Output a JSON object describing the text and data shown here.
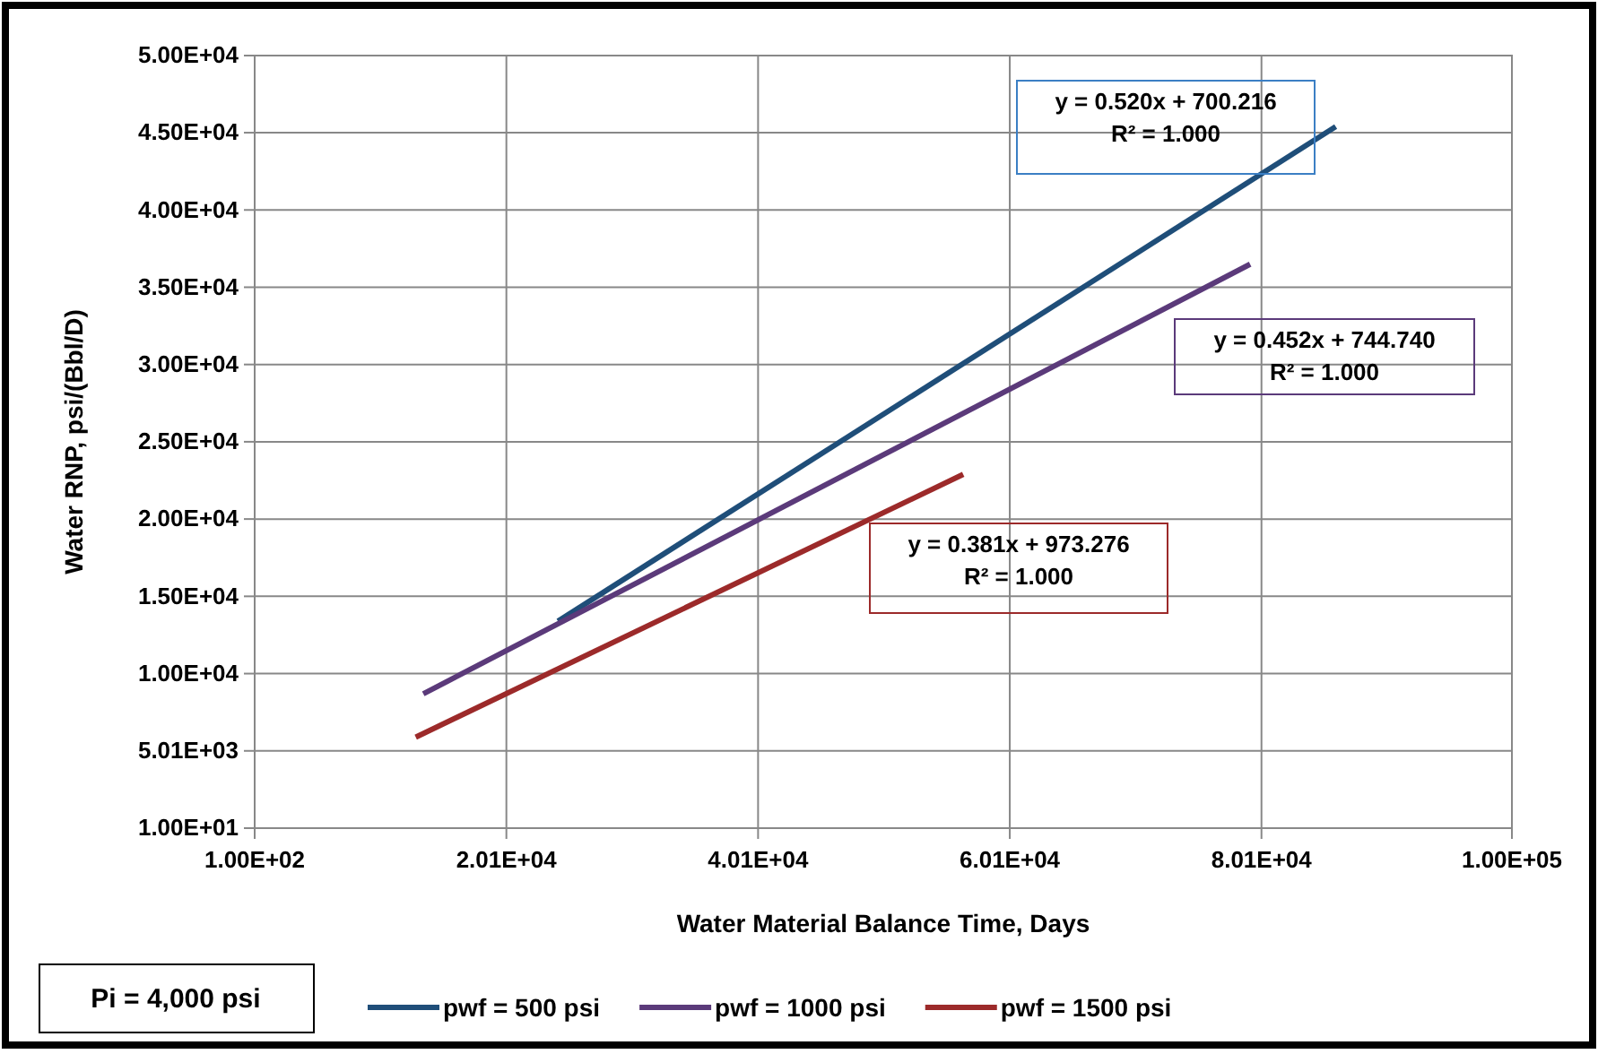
{
  "chart_data": {
    "type": "line",
    "xlabel": "Water Material Balance  Time, Days",
    "ylabel": "Water RNP, psi/(Bbl/D)",
    "xlim": [
      100,
      100000
    ],
    "xticks": [
      {
        "value": 100,
        "label": "1.00E+02"
      },
      {
        "value": 20100,
        "label": "2.01E+04"
      },
      {
        "value": 40100,
        "label": "4.01E+04"
      },
      {
        "value": 60100,
        "label": "6.01E+04"
      },
      {
        "value": 80100,
        "label": "8.01E+04"
      },
      {
        "value": 100000,
        "label": "1.00E+05"
      }
    ],
    "ylim": [
      10,
      50000
    ],
    "yticks": [
      {
        "value": 10,
        "label": "1.00E+01"
      },
      {
        "value": 5010,
        "label": "5.01E+03"
      },
      {
        "value": 10010,
        "label": "1.00E+04"
      },
      {
        "value": 15010,
        "label": "1.50E+04"
      },
      {
        "value": 20010,
        "label": "2.00E+04"
      },
      {
        "value": 25010,
        "label": "2.50E+04"
      },
      {
        "value": 30010,
        "label": "3.00E+04"
      },
      {
        "value": 35010,
        "label": "3.50E+04"
      },
      {
        "value": 40010,
        "label": "4.00E+04"
      },
      {
        "value": 45010,
        "label": "4.50E+04"
      },
      {
        "value": 50000,
        "label": "5.00E+04"
      }
    ],
    "grid": true,
    "legend": "bottom",
    "marker": "none",
    "line_style": "solid",
    "series": [
      {
        "name": "pwf = 500 psi",
        "color": "#1f4e79",
        "x": [
          24200,
          86000
        ],
        "values": [
          13400,
          45400
        ]
      },
      {
        "name": "pwf = 1000 psi",
        "color": "#5b3a7a",
        "x": [
          13500,
          79200
        ],
        "values": [
          8700,
          36500
        ]
      },
      {
        "name": "pwf = 1500 psi",
        "color": "#9c2a2a",
        "x": [
          12900,
          56400
        ],
        "values": [
          5900,
          22900
        ]
      }
    ],
    "annotations": [
      "y = 0.520x + 700.216\nR² = 1.000",
      "y = 0.452x + 744.740\nR² = 1.000",
      "y = 0.381x + 973.276\nR² = 1.000",
      "Pi = 4,000 psi"
    ]
  }
}
